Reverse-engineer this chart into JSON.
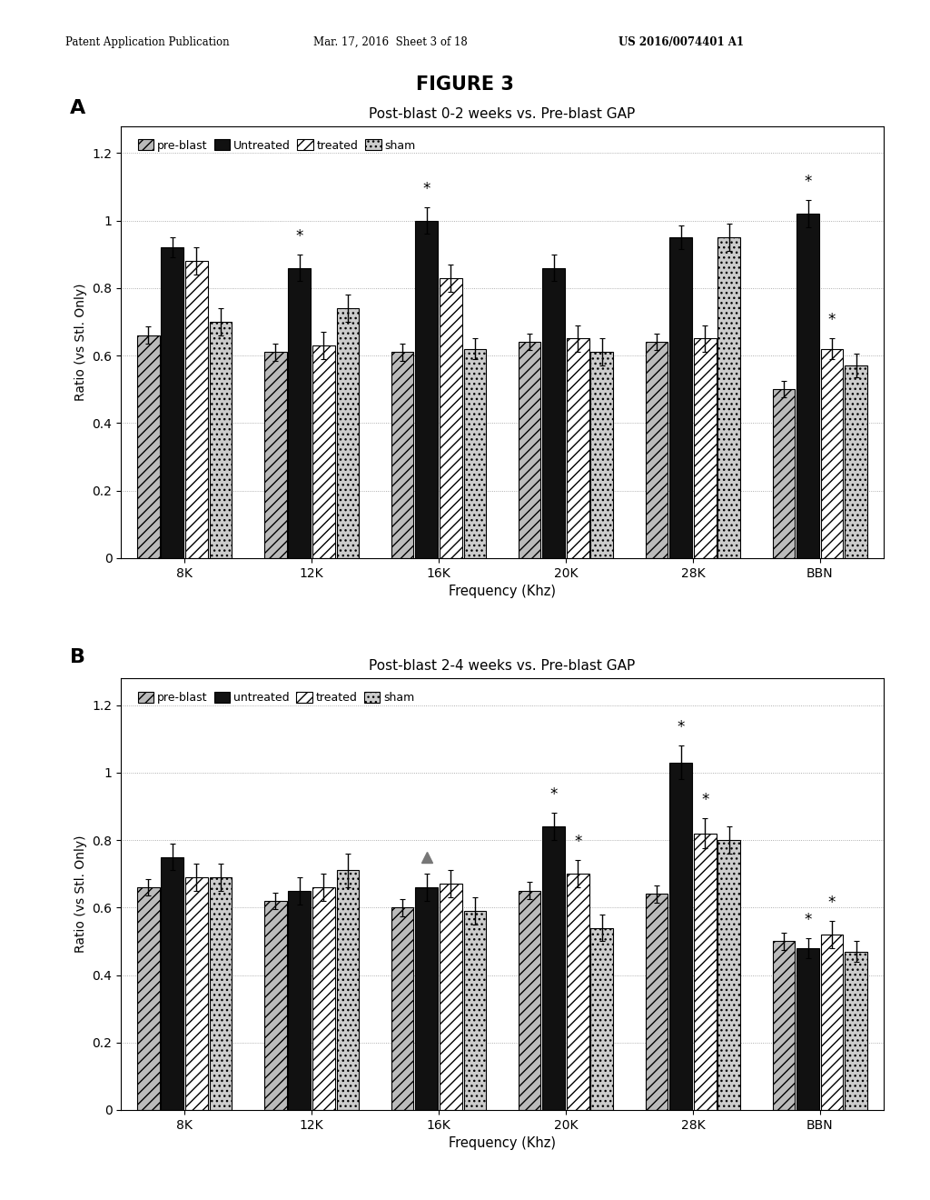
{
  "figure_title": "FIGURE 3",
  "header_left": "Patent Application Publication",
  "header_center": "Mar. 17, 2016  Sheet 3 of 18",
  "header_right": "US 2016/0074401 A1",
  "panel_A": {
    "label": "A",
    "title": "Post-blast 0-2 weeks vs. Pre-blast GAP",
    "xlabel": "Frequency (Khz)",
    "ylabel": "Ratio (vs Stl. Only)",
    "ylim": [
      0,
      1.28
    ],
    "yticks": [
      0,
      0.2,
      0.4,
      0.6,
      0.8,
      1.0,
      1.2
    ],
    "ytick_labels": [
      "0",
      "0.2",
      "0.4",
      "0.6",
      "0.8",
      "1",
      "1.2"
    ],
    "categories": [
      "8K",
      "12K",
      "16K",
      "20K",
      "28K",
      "BBN"
    ],
    "legend_labels": [
      "pre-blast",
      "Untreated",
      "treated",
      "sham"
    ],
    "bar_colors": [
      "#bbbbbb",
      "#111111",
      "#ffffff",
      "#cccccc"
    ],
    "bar_hatches": [
      "///",
      "",
      "///",
      "..."
    ],
    "values": {
      "pre-blast": [
        0.66,
        0.61,
        0.61,
        0.64,
        0.64,
        0.5
      ],
      "Untreated": [
        0.92,
        0.86,
        1.0,
        0.86,
        0.95,
        1.02
      ],
      "treated": [
        0.88,
        0.63,
        0.83,
        0.65,
        0.65,
        0.62
      ],
      "sham": [
        0.7,
        0.74,
        0.62,
        0.61,
        0.95,
        0.57
      ]
    },
    "errors": {
      "pre-blast": [
        0.025,
        0.025,
        0.025,
        0.025,
        0.025,
        0.025
      ],
      "Untreated": [
        0.03,
        0.04,
        0.04,
        0.04,
        0.035,
        0.04
      ],
      "treated": [
        0.04,
        0.04,
        0.04,
        0.04,
        0.04,
        0.03
      ],
      "sham": [
        0.04,
        0.04,
        0.03,
        0.04,
        0.04,
        0.035
      ]
    },
    "sig_markers": [
      {
        "bar": "Untreated",
        "group_idx": 1,
        "symbol": "*"
      },
      {
        "bar": "Untreated",
        "group_idx": 2,
        "symbol": "*"
      },
      {
        "bar": "Untreated",
        "group_idx": 5,
        "symbol": "*"
      },
      {
        "bar": "treated",
        "group_idx": 5,
        "symbol": "*"
      }
    ]
  },
  "panel_B": {
    "label": "B",
    "title": "Post-blast 2-4 weeks vs. Pre-blast GAP",
    "xlabel": "Frequency (Khz)",
    "ylabel": "Ratio (vs Stl. Only)",
    "ylim": [
      0,
      1.28
    ],
    "yticks": [
      0,
      0.2,
      0.4,
      0.6,
      0.8,
      1.0,
      1.2
    ],
    "ytick_labels": [
      "0",
      "0.2",
      "0.4",
      "0.6",
      "0.8",
      "1",
      "1.2"
    ],
    "categories": [
      "8K",
      "12K",
      "16K",
      "20K",
      "28K",
      "BBN"
    ],
    "legend_labels": [
      "pre-blast",
      "untreated",
      "treated",
      "sham"
    ],
    "bar_colors": [
      "#bbbbbb",
      "#111111",
      "#ffffff",
      "#cccccc"
    ],
    "bar_hatches": [
      "///",
      "",
      "///",
      "..."
    ],
    "values": {
      "pre-blast": [
        0.66,
        0.62,
        0.6,
        0.65,
        0.64,
        0.5
      ],
      "untreated": [
        0.75,
        0.65,
        0.66,
        0.84,
        1.03,
        0.48
      ],
      "treated": [
        0.69,
        0.66,
        0.67,
        0.7,
        0.82,
        0.52
      ],
      "sham": [
        0.69,
        0.71,
        0.59,
        0.54,
        0.8,
        0.47
      ]
    },
    "errors": {
      "pre-blast": [
        0.025,
        0.025,
        0.025,
        0.025,
        0.025,
        0.025
      ],
      "untreated": [
        0.04,
        0.04,
        0.04,
        0.04,
        0.05,
        0.03
      ],
      "treated": [
        0.04,
        0.04,
        0.04,
        0.04,
        0.045,
        0.04
      ],
      "sham": [
        0.04,
        0.05,
        0.04,
        0.04,
        0.04,
        0.03
      ]
    },
    "sig_markers": [
      {
        "bar": "untreated",
        "group_idx": 2,
        "symbol": "triangle"
      },
      {
        "bar": "untreated",
        "group_idx": 3,
        "symbol": "*"
      },
      {
        "bar": "treated",
        "group_idx": 3,
        "symbol": "*"
      },
      {
        "bar": "untreated",
        "group_idx": 4,
        "symbol": "*"
      },
      {
        "bar": "treated",
        "group_idx": 4,
        "symbol": "*"
      },
      {
        "bar": "untreated",
        "group_idx": 5,
        "symbol": "*"
      },
      {
        "bar": "treated",
        "group_idx": 5,
        "symbol": "*"
      }
    ]
  }
}
